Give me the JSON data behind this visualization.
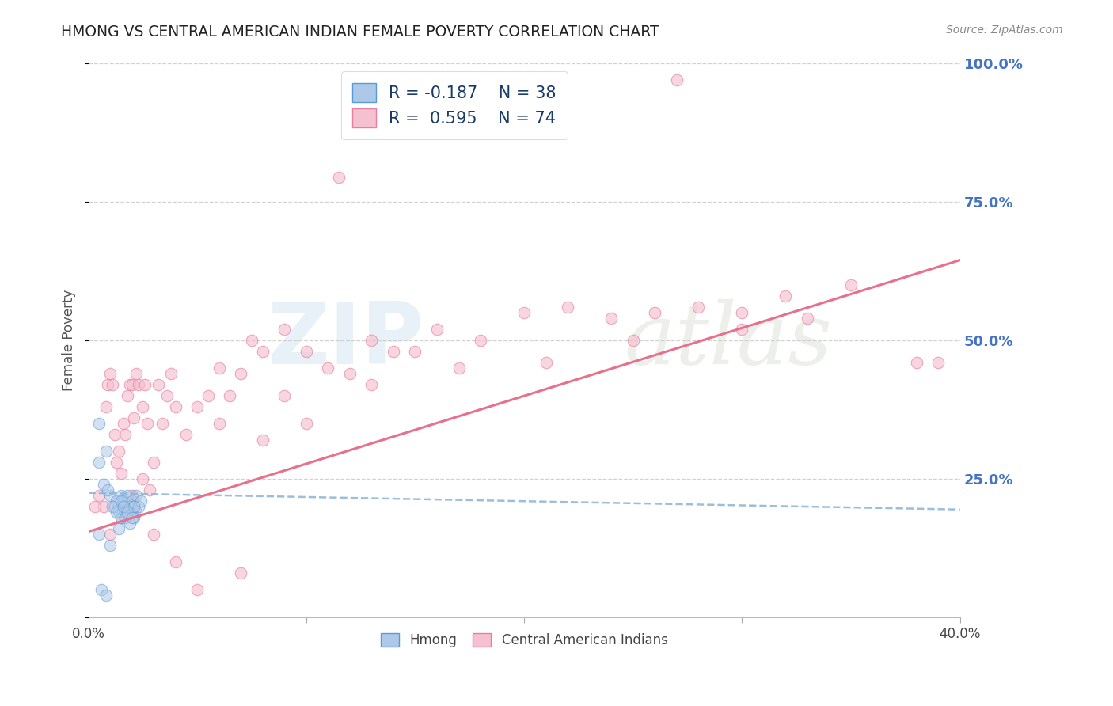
{
  "title": "HMONG VS CENTRAL AMERICAN INDIAN FEMALE POVERTY CORRELATION CHART",
  "source": "Source: ZipAtlas.com",
  "ylabel": "Female Poverty",
  "xlim": [
    0.0,
    0.4
  ],
  "ylim": [
    0.0,
    1.0
  ],
  "hmong_color": "#adc8e8",
  "hmong_edge_color": "#5b9bd5",
  "central_color": "#f5c0d0",
  "central_edge_color": "#e87fa0",
  "trend_hmong_color": "#8ab4d4",
  "trend_central_color": "#e8708a",
  "legend_r_hmong": "R = -0.187",
  "legend_n_hmong": "N = 38",
  "legend_r_central": "R =  0.595",
  "legend_n_central": "N = 74",
  "watermark_zip": "ZIP",
  "watermark_atlas": "atlas",
  "right_axis_color": "#4472c4",
  "background_color": "#ffffff",
  "grid_color": "#cccccc",
  "title_color": "#222222",
  "hmong_x": [
    0.005,
    0.008,
    0.01,
    0.012,
    0.013,
    0.014,
    0.015,
    0.015,
    0.016,
    0.017,
    0.018,
    0.018,
    0.019,
    0.02,
    0.02,
    0.021,
    0.021,
    0.022,
    0.022,
    0.023,
    0.024,
    0.005,
    0.007,
    0.009,
    0.011,
    0.013,
    0.015,
    0.017,
    0.019,
    0.021,
    0.005,
    0.01,
    0.014,
    0.016,
    0.018,
    0.02,
    0.006,
    0.008
  ],
  "hmong_y": [
    0.35,
    0.3,
    0.22,
    0.2,
    0.21,
    0.19,
    0.22,
    0.18,
    0.21,
    0.19,
    0.2,
    0.22,
    0.2,
    0.19,
    0.21,
    0.2,
    0.18,
    0.22,
    0.19,
    0.2,
    0.21,
    0.28,
    0.24,
    0.23,
    0.2,
    0.19,
    0.21,
    0.18,
    0.17,
    0.2,
    0.15,
    0.13,
    0.16,
    0.2,
    0.19,
    0.18,
    0.05,
    0.04
  ],
  "central_x": [
    0.005,
    0.007,
    0.008,
    0.009,
    0.01,
    0.011,
    0.012,
    0.013,
    0.014,
    0.015,
    0.016,
    0.017,
    0.018,
    0.019,
    0.02,
    0.021,
    0.022,
    0.023,
    0.025,
    0.026,
    0.027,
    0.028,
    0.03,
    0.032,
    0.034,
    0.036,
    0.038,
    0.04,
    0.045,
    0.05,
    0.055,
    0.06,
    0.065,
    0.07,
    0.075,
    0.08,
    0.09,
    0.1,
    0.11,
    0.12,
    0.13,
    0.14,
    0.16,
    0.18,
    0.2,
    0.22,
    0.24,
    0.26,
    0.28,
    0.3,
    0.32,
    0.35,
    0.38,
    0.01,
    0.015,
    0.02,
    0.025,
    0.03,
    0.04,
    0.05,
    0.07,
    0.09,
    0.13,
    0.21,
    0.25,
    0.3,
    0.33,
    0.06,
    0.08,
    0.1,
    0.17,
    0.39,
    0.003,
    0.15
  ],
  "central_y": [
    0.22,
    0.2,
    0.38,
    0.42,
    0.44,
    0.42,
    0.33,
    0.28,
    0.3,
    0.26,
    0.35,
    0.33,
    0.4,
    0.42,
    0.42,
    0.36,
    0.44,
    0.42,
    0.38,
    0.42,
    0.35,
    0.23,
    0.28,
    0.42,
    0.35,
    0.4,
    0.44,
    0.38,
    0.33,
    0.38,
    0.4,
    0.45,
    0.4,
    0.44,
    0.5,
    0.48,
    0.52,
    0.48,
    0.45,
    0.44,
    0.5,
    0.48,
    0.52,
    0.5,
    0.55,
    0.56,
    0.54,
    0.55,
    0.56,
    0.55,
    0.58,
    0.6,
    0.46,
    0.15,
    0.18,
    0.22,
    0.25,
    0.15,
    0.1,
    0.05,
    0.08,
    0.4,
    0.42,
    0.46,
    0.5,
    0.52,
    0.54,
    0.35,
    0.32,
    0.35,
    0.45,
    0.46,
    0.2,
    0.48
  ],
  "central_outlier_x": [
    0.27
  ],
  "central_outlier_y": [
    0.97
  ],
  "central_outlier2_x": [
    0.115
  ],
  "central_outlier2_y": [
    0.795
  ],
  "hmong_trend_x": [
    0.0,
    0.4
  ],
  "hmong_trend_y": [
    0.225,
    0.195
  ],
  "central_trend_x": [
    0.0,
    0.4
  ],
  "central_trend_y": [
    0.155,
    0.645
  ],
  "marker_size": 110,
  "alpha_hmong": 0.55,
  "alpha_central": 0.65
}
